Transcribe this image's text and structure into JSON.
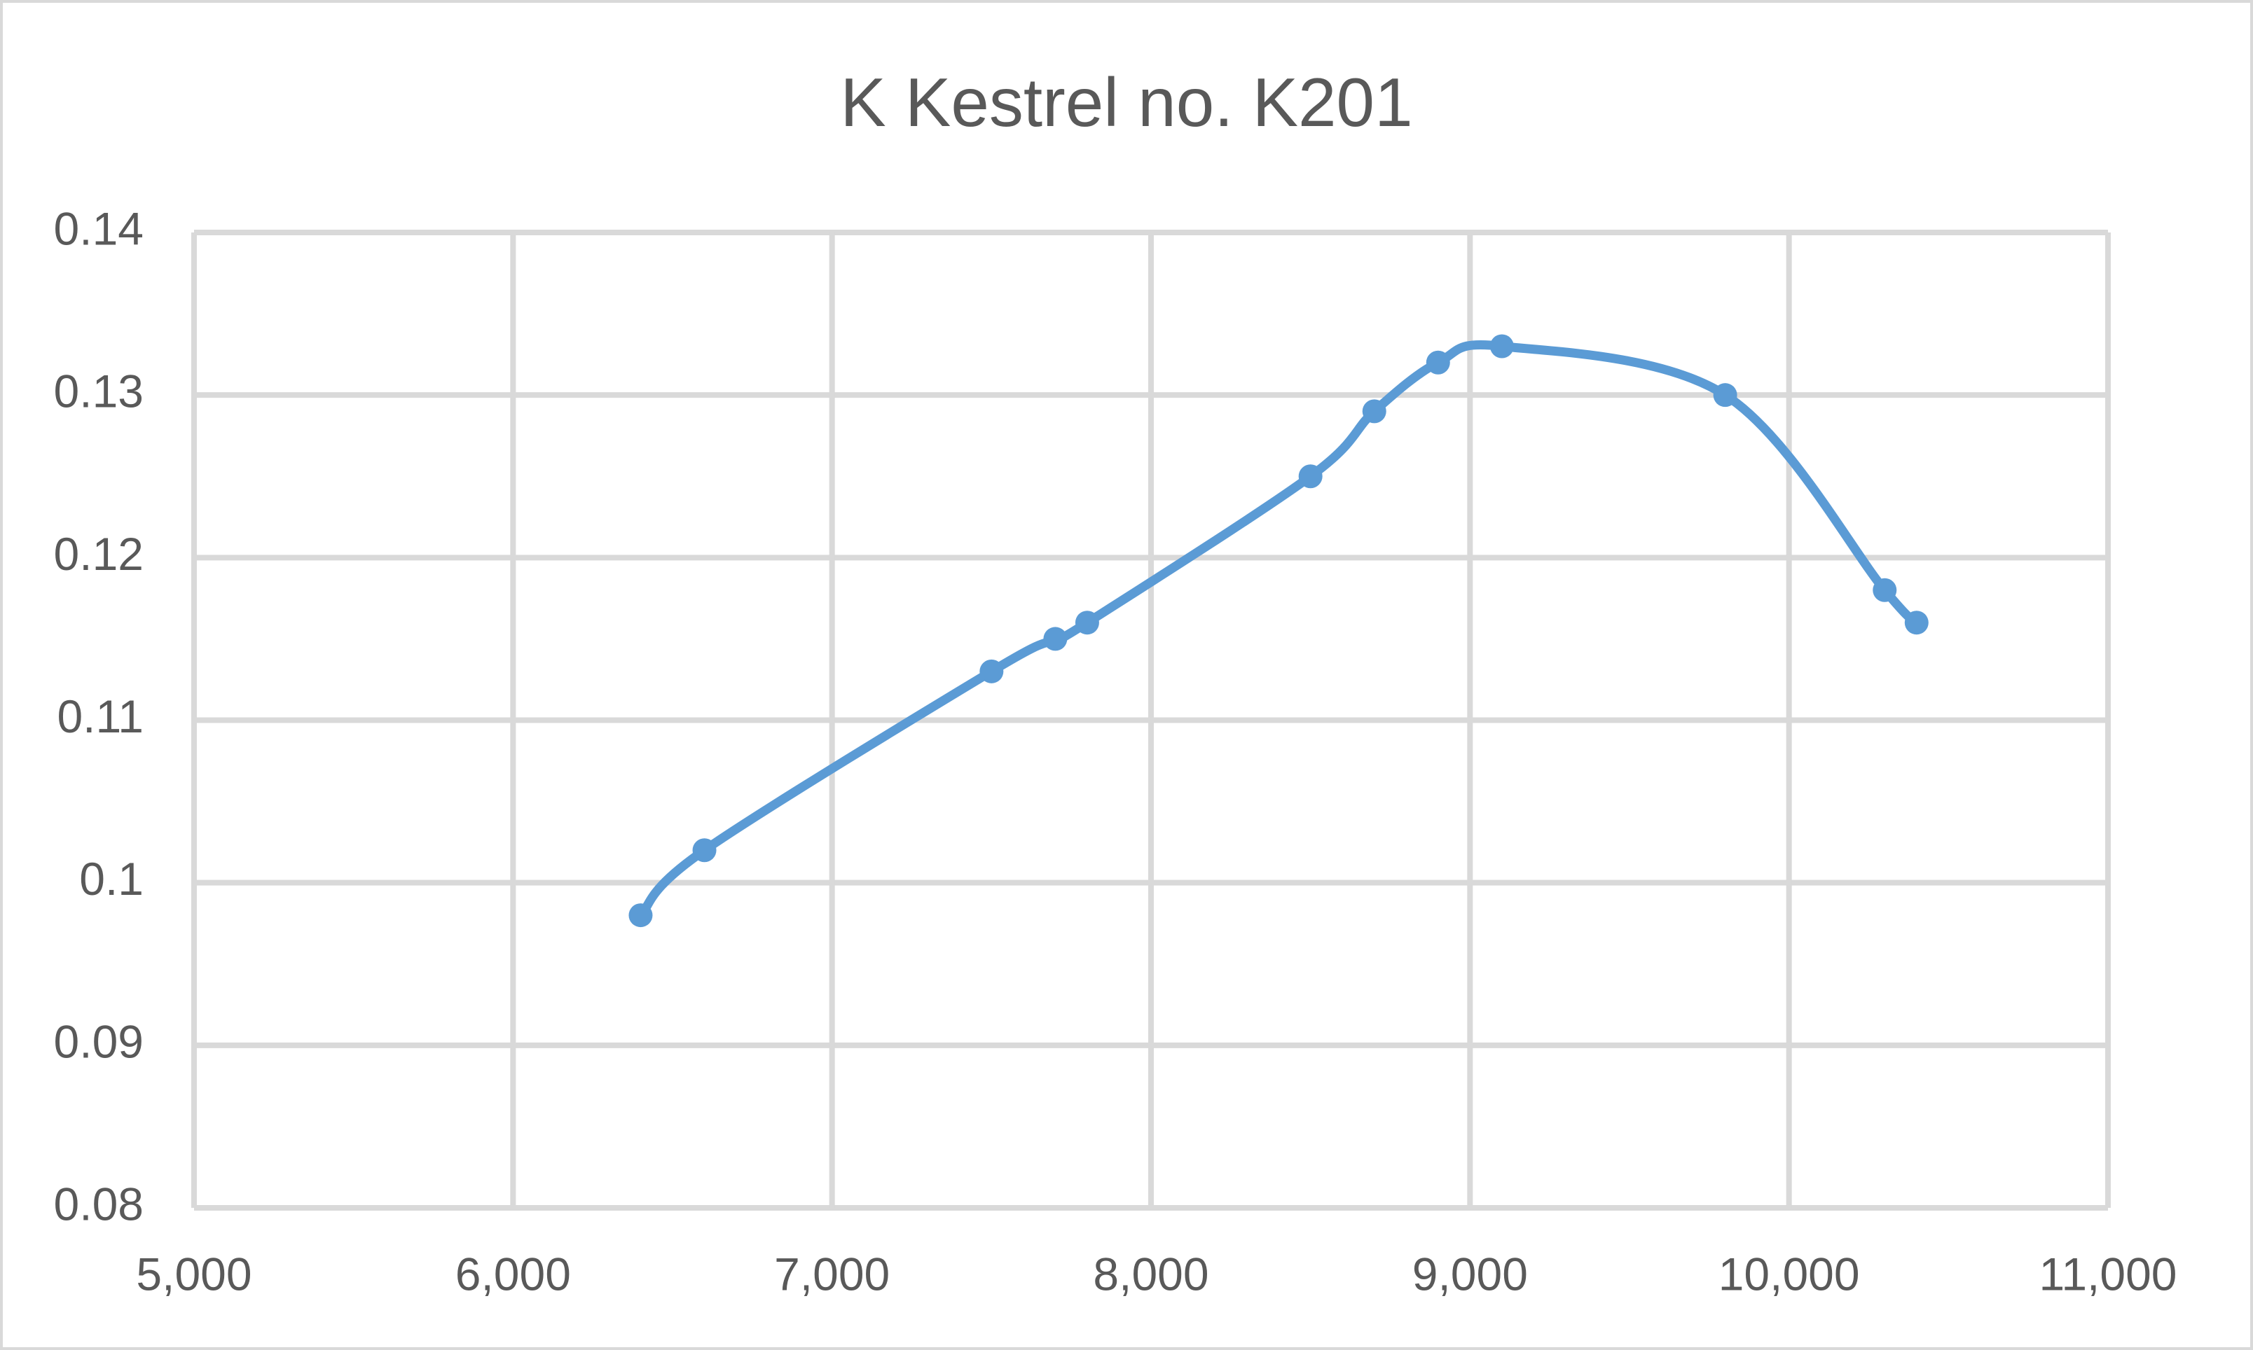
{
  "chart_data": {
    "type": "scatter-line",
    "title": "K Kestrel no. K201",
    "x": [
      6400,
      6600,
      7500,
      7700,
      7800,
      8500,
      8700,
      8900,
      9100,
      9800,
      10300,
      10400
    ],
    "values": [
      0.098,
      0.102,
      0.113,
      0.115,
      0.116,
      0.125,
      0.129,
      0.132,
      0.133,
      0.13,
      0.118,
      0.116
    ],
    "color": "#5b9bd5",
    "xlim": [
      5000,
      11000
    ],
    "xticks": [
      {
        "value": 5000,
        "label": "5,000"
      },
      {
        "value": 6000,
        "label": "6,000"
      },
      {
        "value": 7000,
        "label": "7,000"
      },
      {
        "value": 8000,
        "label": "8,000"
      },
      {
        "value": 9000,
        "label": "9,000"
      },
      {
        "value": 10000,
        "label": "10,000"
      },
      {
        "value": 11000,
        "label": "11,000"
      }
    ],
    "ylim": [
      0.08,
      0.14
    ],
    "yticks": [
      0.08,
      0.09,
      0.1,
      0.11,
      0.12,
      0.13,
      0.14
    ],
    "grid": true
  }
}
